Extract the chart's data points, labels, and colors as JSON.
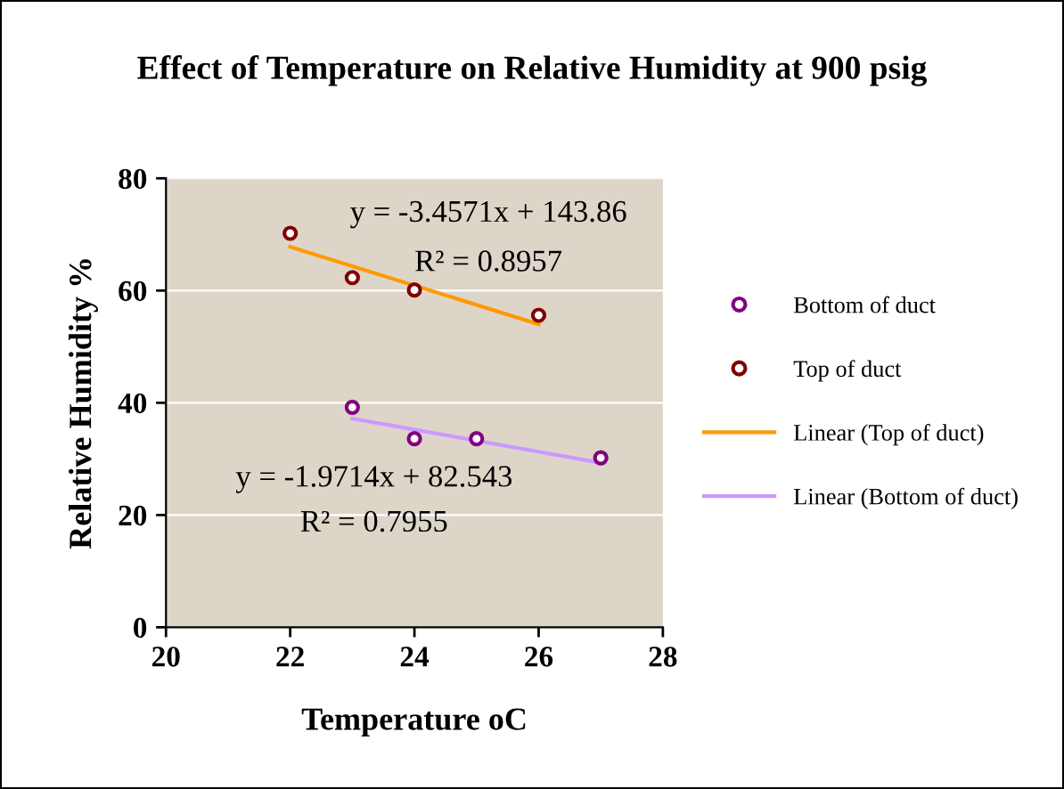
{
  "chart_data": {
    "type": "scatter",
    "title": "Effect of Temperature on Relative Humidity at 900 psig",
    "xlabel": "Temperature oC",
    "ylabel": "Relative Humidity %",
    "xlim": [
      20,
      28
    ],
    "xticks": [
      20,
      22,
      24,
      26,
      28
    ],
    "ylim": [
      0,
      80
    ],
    "yticks": [
      0,
      20,
      40,
      60,
      80
    ],
    "grid": "y",
    "legend": "right",
    "series": [
      {
        "name": "Bottom of duct",
        "color": "#800080",
        "x": [
          23,
          24,
          25,
          27
        ],
        "values": [
          39.2,
          33.6,
          33.6,
          30.2
        ],
        "marker": "circle"
      },
      {
        "name": "Top of duct",
        "color": "#800000",
        "x": [
          22,
          23,
          24,
          26
        ],
        "values": [
          70.2,
          62.3,
          60.1,
          55.6
        ],
        "marker": "circle"
      },
      {
        "name": "Linear (Top of duct)",
        "type": "line",
        "color": "#ff9900",
        "x": [
          22,
          26
        ],
        "values": [
          67.8,
          54
        ]
      },
      {
        "name": "Linear (Bottom of duct)",
        "type": "line",
        "color": "#cc99ff",
        "x": [
          23,
          27
        ],
        "values": [
          37.2,
          29.3
        ]
      }
    ],
    "annotations": [
      "y = -3.4571x + 143.86",
      "R² = 0.8957",
      "y = -1.9714x + 82.543",
      "R² = 0.7955"
    ]
  }
}
